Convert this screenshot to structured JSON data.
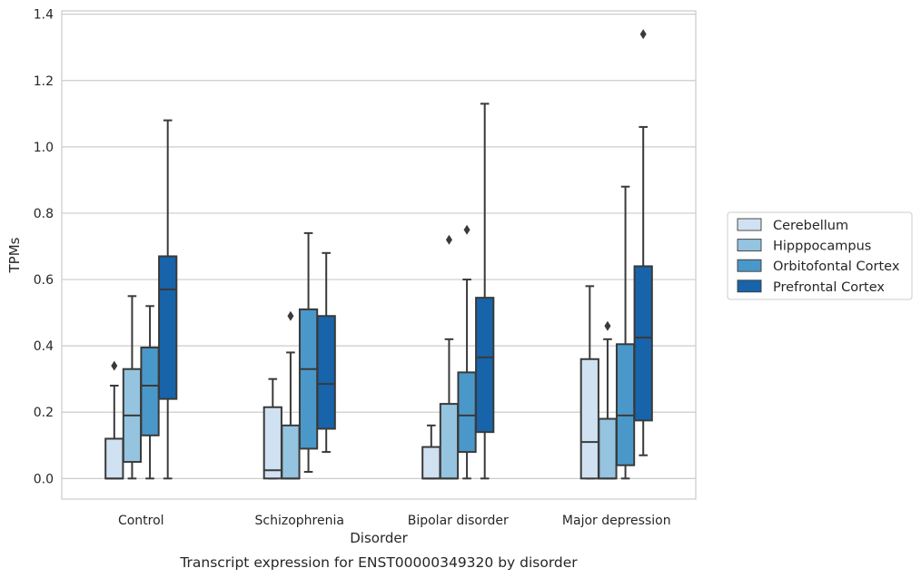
{
  "chart_data": {
    "type": "box",
    "title": "",
    "caption": "Transcript expression for ENST00000349320 by disorder",
    "xlabel": "Disorder",
    "ylabel": "TPMs",
    "ylim": [
      -0.062,
      1.41
    ],
    "yticks": [
      "0.0",
      "0.2",
      "0.4",
      "0.6",
      "0.8",
      "1.0",
      "1.2",
      "1.4"
    ],
    "grid": "horizontal",
    "legend_position": "right",
    "categories": [
      "Control",
      "Schizophrenia",
      "Bipolar disorder",
      "Major depression"
    ],
    "series": [
      {
        "name": "Cerebellum",
        "color": "#d0e1f2",
        "boxes": [
          {
            "whisker_low": 0.0,
            "q1": 0.0,
            "median": 0.0,
            "q3": 0.12,
            "whisker_high": 0.28,
            "outliers": [
              0.34
            ]
          },
          {
            "whisker_low": 0.0,
            "q1": 0.0,
            "median": 0.025,
            "q3": 0.215,
            "whisker_high": 0.3,
            "outliers": []
          },
          {
            "whisker_low": 0.0,
            "q1": 0.0,
            "median": 0.0,
            "q3": 0.095,
            "whisker_high": 0.16,
            "outliers": []
          },
          {
            "whisker_low": 0.0,
            "q1": 0.0,
            "median": 0.11,
            "q3": 0.36,
            "whisker_high": 0.58,
            "outliers": []
          }
        ]
      },
      {
        "name": "Hipppocampus",
        "color": "#94c4df",
        "boxes": [
          {
            "whisker_low": 0.0,
            "q1": 0.05,
            "median": 0.19,
            "q3": 0.33,
            "whisker_high": 0.55,
            "outliers": []
          },
          {
            "whisker_low": 0.0,
            "q1": 0.0,
            "median": 0.0,
            "q3": 0.16,
            "whisker_high": 0.38,
            "outliers": [
              0.49
            ]
          },
          {
            "whisker_low": 0.0,
            "q1": 0.0,
            "median": 0.0,
            "q3": 0.225,
            "whisker_high": 0.42,
            "outliers": [
              0.72
            ]
          },
          {
            "whisker_low": 0.0,
            "q1": 0.0,
            "median": 0.0,
            "q3": 0.18,
            "whisker_high": 0.42,
            "outliers": [
              0.46
            ]
          }
        ]
      },
      {
        "name": "Orbitofontal Cortex",
        "color": "#4a98c9",
        "boxes": [
          {
            "whisker_low": 0.0,
            "q1": 0.13,
            "median": 0.28,
            "q3": 0.395,
            "whisker_high": 0.52,
            "outliers": []
          },
          {
            "whisker_low": 0.02,
            "q1": 0.09,
            "median": 0.33,
            "q3": 0.51,
            "whisker_high": 0.74,
            "outliers": []
          },
          {
            "whisker_low": 0.0,
            "q1": 0.08,
            "median": 0.19,
            "q3": 0.32,
            "whisker_high": 0.6,
            "outliers": [
              0.75
            ]
          },
          {
            "whisker_low": 0.0,
            "q1": 0.04,
            "median": 0.19,
            "q3": 0.405,
            "whisker_high": 0.88,
            "outliers": []
          }
        ]
      },
      {
        "name": "Prefrontal Cortex",
        "color": "#1764ab",
        "boxes": [
          {
            "whisker_low": 0.0,
            "q1": 0.24,
            "median": 0.57,
            "q3": 0.67,
            "whisker_high": 1.08,
            "outliers": []
          },
          {
            "whisker_low": 0.08,
            "q1": 0.15,
            "median": 0.285,
            "q3": 0.49,
            "whisker_high": 0.68,
            "outliers": []
          },
          {
            "whisker_low": 0.0,
            "q1": 0.14,
            "median": 0.365,
            "q3": 0.545,
            "whisker_high": 1.13,
            "outliers": []
          },
          {
            "whisker_low": 0.07,
            "q1": 0.175,
            "median": 0.425,
            "q3": 0.64,
            "whisker_high": 1.06,
            "outliers": [
              1.34
            ]
          }
        ]
      }
    ]
  }
}
